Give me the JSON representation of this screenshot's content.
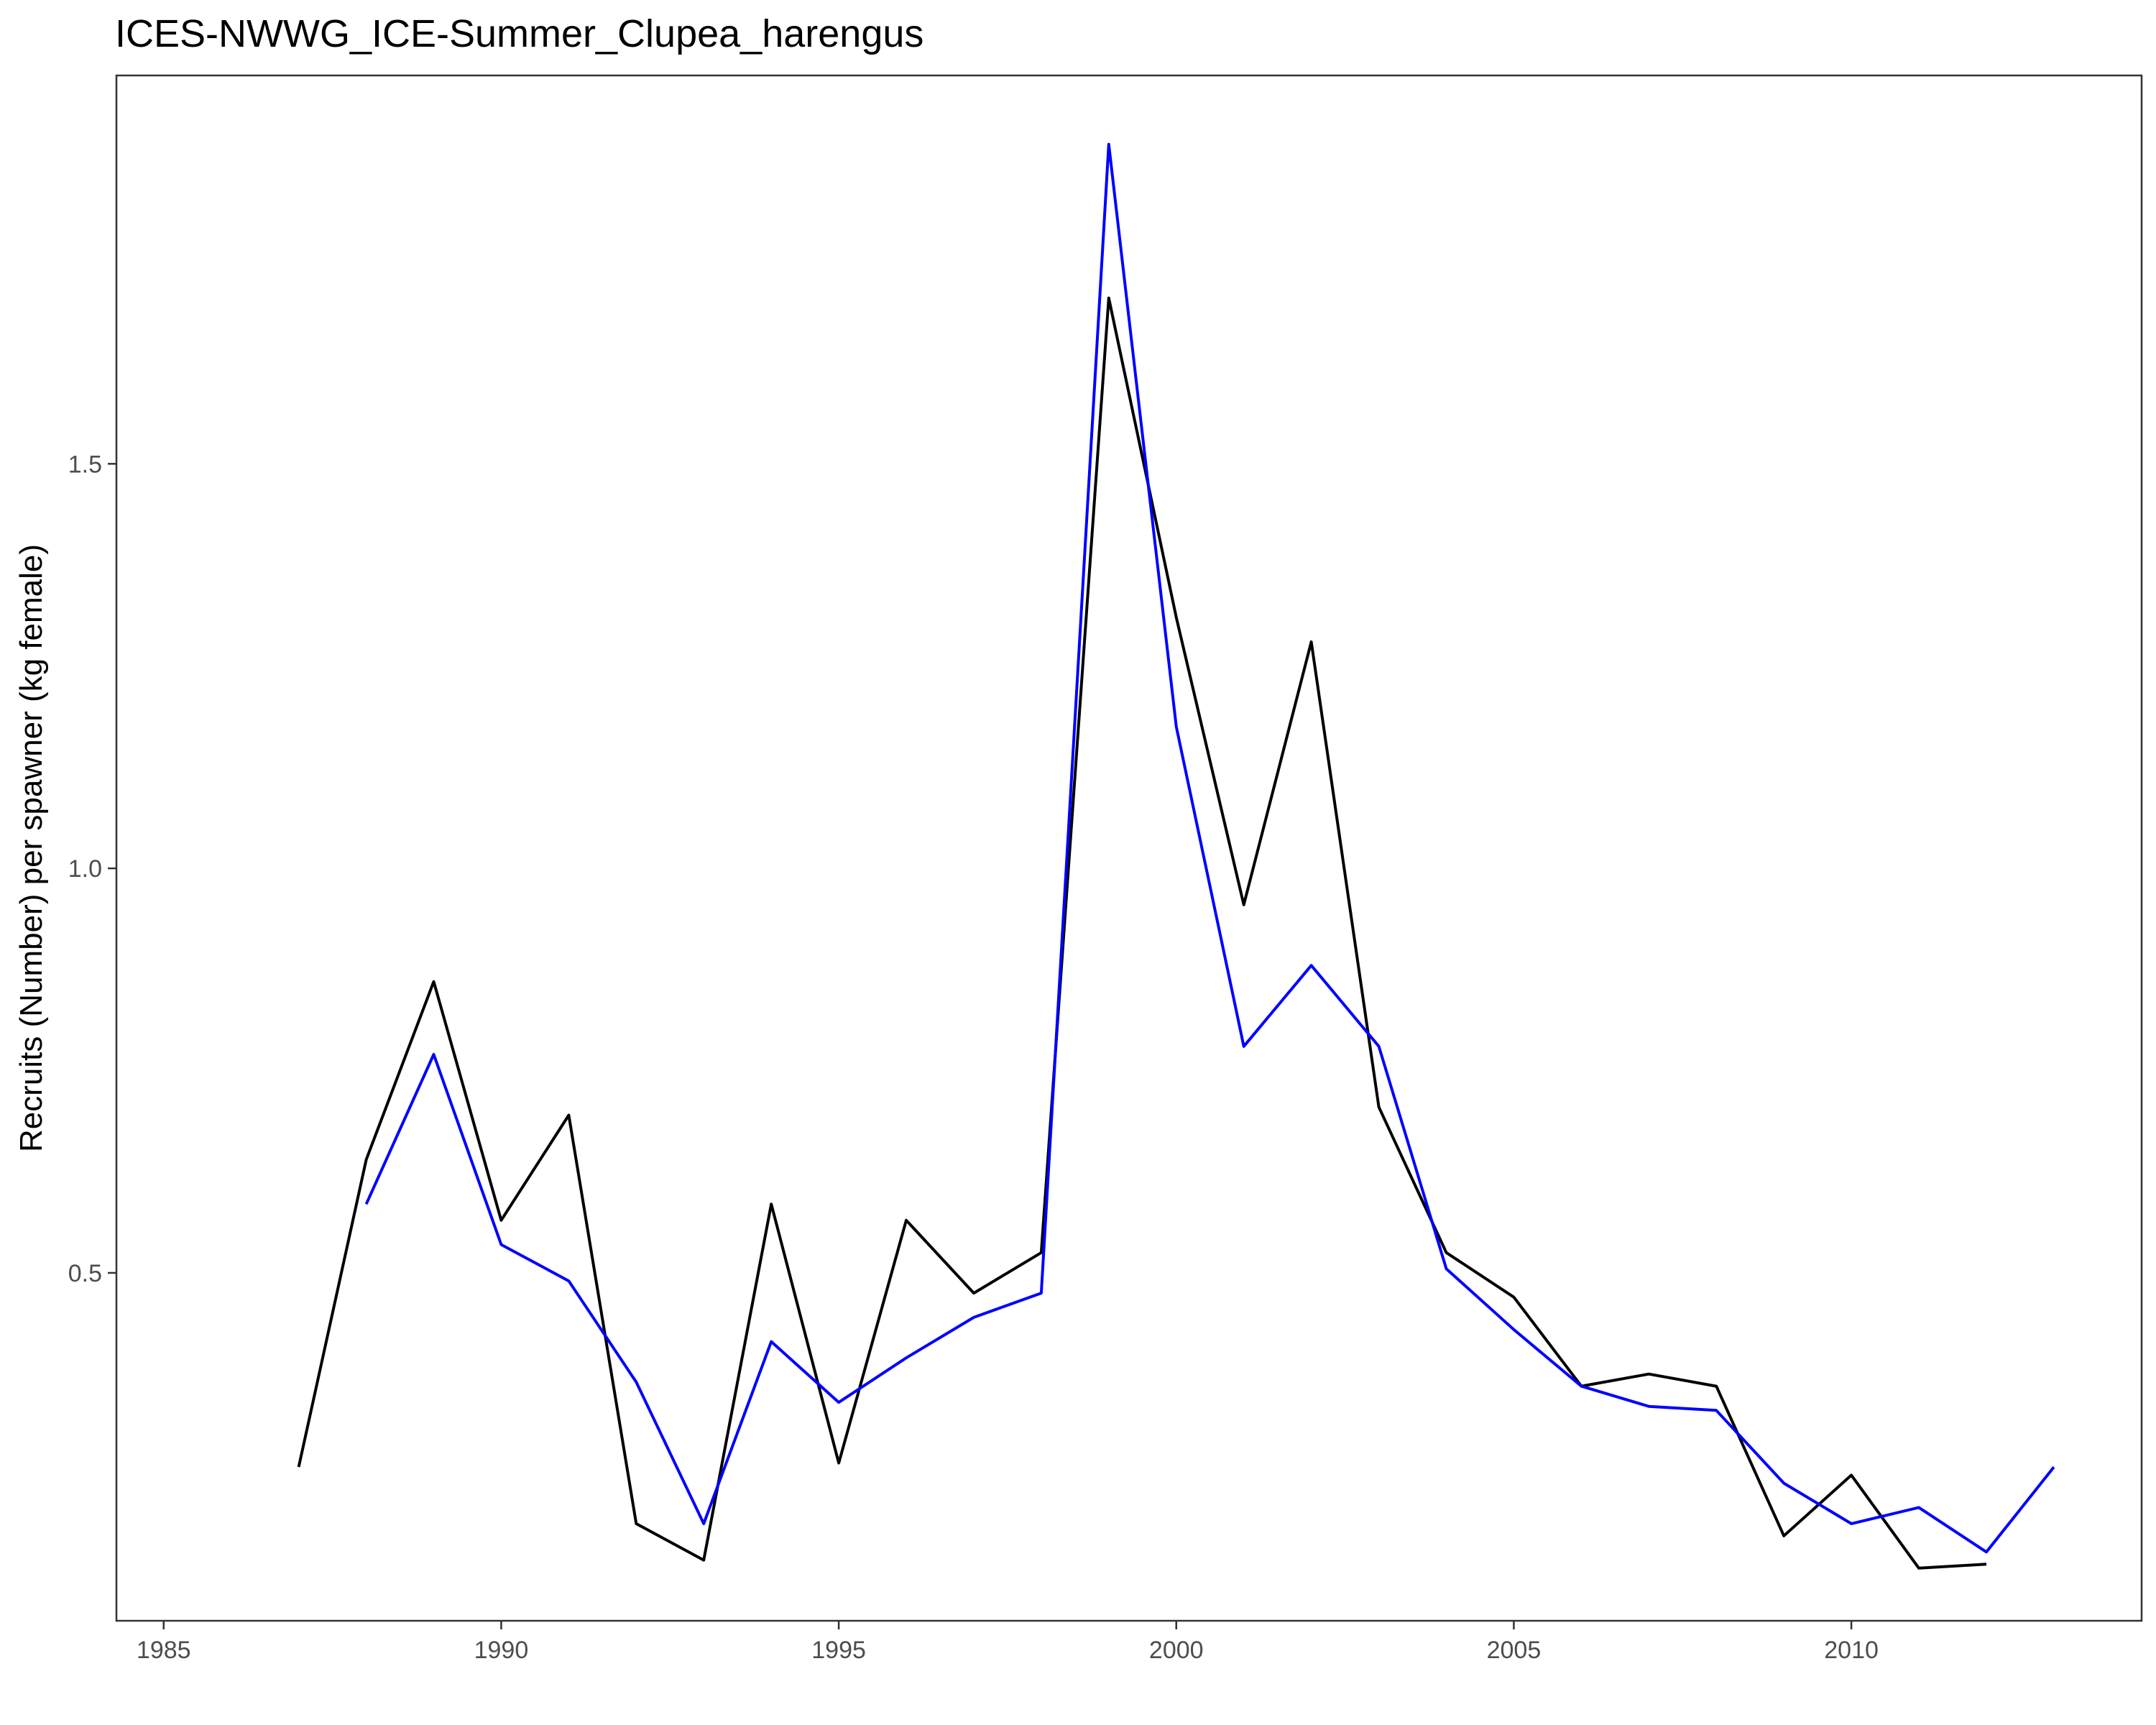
{
  "chart_data": {
    "type": "line",
    "title": "ICES-NWWG_ICE-Summer_Clupea_harengus",
    "xlabel": "",
    "ylabel": "Recruits (Number) per spawner (kg female)",
    "xlim": [
      1984.3,
      2014.3
    ],
    "ylim": [
      0.07,
      1.98
    ],
    "x_ticks": [
      1985,
      1990,
      1995,
      2000,
      2005,
      2010
    ],
    "y_ticks": [
      0.5,
      1.0,
      1.5
    ],
    "x_tick_labels": [
      "1985",
      "1990",
      "1995",
      "2000",
      "2005",
      "2010"
    ],
    "y_tick_labels": [
      "0.5",
      "1.0",
      "1.5"
    ],
    "grid": false,
    "series": [
      {
        "color": "#000000",
        "x": [
          1987,
          1988,
          1989,
          1990,
          1991,
          1992,
          1993,
          1994,
          1995,
          1996,
          1997,
          1998,
          1999,
          2000,
          2001,
          2002,
          2003,
          2004,
          2005,
          2006,
          2007,
          2008,
          2009,
          2010,
          2011,
          2012
        ],
        "values": [
          0.26,
          0.64,
          0.86,
          0.565,
          0.695,
          0.19,
          0.145,
          0.585,
          0.265,
          0.565,
          0.475,
          0.525,
          1.705,
          1.31,
          0.955,
          1.28,
          0.705,
          0.525,
          0.47,
          0.36,
          0.375,
          0.36,
          0.175,
          0.25,
          0.135,
          0.14
        ]
      },
      {
        "color": "#0000ff",
        "x": [
          1988,
          1989,
          1990,
          1991,
          1992,
          1993,
          1994,
          1995,
          1996,
          1997,
          1998,
          1999,
          2000,
          2001,
          2002,
          2003,
          2004,
          2005,
          2006,
          2007,
          2008,
          2009,
          2010,
          2011,
          2012,
          2013
        ],
        "values": [
          0.585,
          0.77,
          0.535,
          0.49,
          0.365,
          0.19,
          0.415,
          0.34,
          0.395,
          0.445,
          0.475,
          1.895,
          1.175,
          0.78,
          0.88,
          0.78,
          0.505,
          0.43,
          0.36,
          0.335,
          0.33,
          0.24,
          0.19,
          0.21,
          0.155,
          0.26
        ]
      }
    ]
  }
}
